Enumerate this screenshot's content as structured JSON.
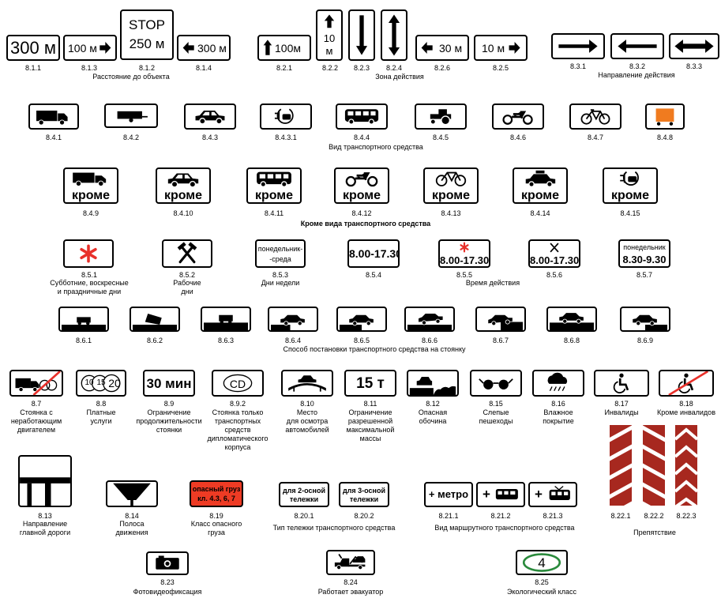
{
  "numbers": {
    "n811": "8.1.1",
    "n813": "8.1.3",
    "n812": "8.1.2",
    "n814": "8.1.4",
    "n821": "8.2.1",
    "n822": "8.2.2",
    "n823": "8.2.3",
    "n824": "8.2.4",
    "n826": "8.2.6",
    "n825": "8.2.5",
    "n831": "8.3.1",
    "n832": "8.3.2",
    "n833": "8.3.3",
    "n841": "8.4.1",
    "n842": "8.4.2",
    "n843": "8.4.3",
    "n8431": "8.4.3.1",
    "n844": "8.4.4",
    "n845": "8.4.5",
    "n846": "8.4.6",
    "n847": "8.4.7",
    "n848": "8.4.8",
    "n849": "8.4.9",
    "n8410": "8.4.10",
    "n8411": "8.4.11",
    "n8412": "8.4.12",
    "n8413": "8.4.13",
    "n8414": "8.4.14",
    "n8415": "8.4.15",
    "n851": "8.5.1",
    "n852": "8.5.2",
    "n853": "8.5.3",
    "n854": "8.5.4",
    "n855": "8.5.5",
    "n856": "8.5.6",
    "n857": "8.5.7",
    "n861": "8.6.1",
    "n862": "8.6.2",
    "n863": "8.6.3",
    "n864": "8.6.4",
    "n865": "8.6.5",
    "n866": "8.6.6",
    "n867": "8.6.7",
    "n868": "8.6.8",
    "n869": "8.6.9",
    "n87": "8.7",
    "n88": "8.8",
    "n89": "8.9",
    "n892": "8.9.2",
    "n810": "8.10",
    "n811b": "8.11",
    "n812b": "8.12",
    "n815": "8.15",
    "n816": "8.16",
    "n817": "8.17",
    "n818": "8.18",
    "n813b": "8.13",
    "n814b": "8.14",
    "n819": "8.19",
    "n8201": "8.20.1",
    "n8202": "8.20.2",
    "n8211": "8.21.1",
    "n8212": "8.21.2",
    "n8213": "8.21.3",
    "n8221": "8.22.1",
    "n8222": "8.22.2",
    "n8223": "8.22.3",
    "n823b": "8.23",
    "n824b": "8.24",
    "n825b": "8.25"
  },
  "captions": {
    "distance": "Расстояние до объекта",
    "zone": "Зона действия",
    "direction": "Направление действия",
    "vehicle_type": "Вид транспортного средства",
    "except_vehicle": "Кроме вида  транспортного средства",
    "holidays": "Субботние, воскресные\nи праздничные дни",
    "workdays": "Рабочие\nдни",
    "weekdays": "Дни недели",
    "time": "Время действия",
    "parking_method": "Способ постановки транспортного средства на стоянку",
    "engine_off": "Стоянка с\nнеработающим\nдвигателем",
    "paid": "Платные\nуслуги",
    "limit_duration": "Ограничение\nпродолжительности\nстоянки",
    "diplomatic": "Стоянка только\nтранспортных\nсредств\nдипломатического\nкорпуса",
    "inspection": "Место\nдля осмотра\nавтомобилей",
    "mass_limit": "Ограничение\nразрешенной\nмаксимальной\nмассы",
    "shoulder": "Опасная\nобочина",
    "blind": "Слепые\nпешеходы",
    "wet": "Влажное\nпокрытие",
    "disabled": "Инвалиды",
    "except_disabled": "Кроме инвалидов",
    "main_road": "Направление\nглавной дороги",
    "lane": "Полоса\nдвижения",
    "dangerous_class": "Класс опасного\nгруза",
    "bogie_type": "Тип тележки транспортного средства",
    "route_type": "Вид маршрутного транспортного средства",
    "obstacle": "Препятствие",
    "photo": "Фотовидеофиксация",
    "tow": "Работает эвакуатор",
    "eco": "Экологический класс"
  },
  "signs": {
    "d300": "300 м",
    "d100r": "100 м",
    "stop": "STOP",
    "d250": "250 м",
    "d300l": "300 м",
    "z100": "100м",
    "z10": "10",
    "zm": "м",
    "z30": "30 м",
    "z10m": "10 м",
    "krome": "кроме",
    "mon_wed_1": "понедельник-",
    "mon_wed_2": "-среда",
    "t_start": "8.00",
    "t_dash": "-",
    "t_end": "17.30",
    "mon_fri": "понедельник",
    "t830": "8.30",
    "t930": "9.30",
    "min30": "30 мин",
    "cd": "CD",
    "t15": "15 т",
    "coin10": "10",
    "coin15": "15",
    "coin20": "20",
    "cargo1": "опасный груз",
    "cargo2": "кл. 4.3, 6, 7",
    "bogie2a": "для 2-осной",
    "bogie2b": "тележки",
    "bogie3a": "для 3-осной",
    "bogie3b": "тележки",
    "metro": "+ метро",
    "plus": "+",
    "eco_num": "4"
  },
  "colors": {
    "red": "#e8302a",
    "orange": "#f07b1f",
    "cargo_red": "#ee3b24",
    "green": "#2a8a3c",
    "dark_red": "#a7281f"
  }
}
